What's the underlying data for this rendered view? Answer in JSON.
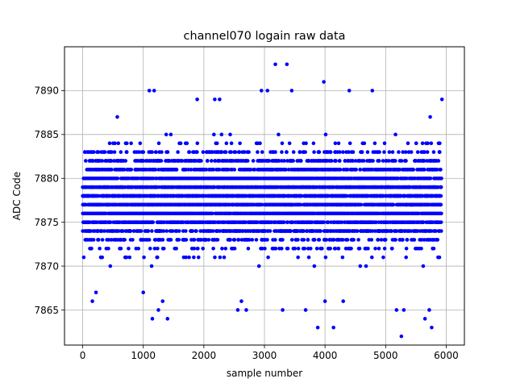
{
  "chart_data": {
    "type": "scatter",
    "title": "channel070 logain raw data",
    "xlabel": "sample number",
    "ylabel": "ADC Code",
    "xlim": [
      -300,
      6300
    ],
    "ylim": [
      7861,
      7895
    ],
    "xticks": [
      0,
      1000,
      2000,
      3000,
      4000,
      5000,
      6000
    ],
    "yticks": [
      7865,
      7870,
      7875,
      7880,
      7885,
      7890
    ],
    "x_tick_labels": [
      "0",
      "1000",
      "2000",
      "3000",
      "4000",
      "5000",
      "6000"
    ],
    "y_tick_labels": [
      "7865",
      "7870",
      "7875",
      "7880",
      "7885",
      "7890"
    ],
    "grid": true,
    "marker_color": "#0000ff",
    "series": [
      {
        "n_samples": 6000,
        "x_range": [
          0,
          5920
        ],
        "dense_band": [
          7868,
          7887
        ],
        "outliers": [
          [
            160,
            7866
          ],
          [
            220,
            7867
          ],
          [
            1000,
            7867
          ],
          [
            1150,
            7864
          ],
          [
            1250,
            7865
          ],
          [
            1320,
            7866
          ],
          [
            1400,
            7864
          ],
          [
            1100,
            7890
          ],
          [
            1180,
            7890
          ],
          [
            1890,
            7889
          ],
          [
            2180,
            7889
          ],
          [
            2260,
            7889
          ],
          [
            2560,
            7865
          ],
          [
            2620,
            7866
          ],
          [
            2700,
            7865
          ],
          [
            2950,
            7890
          ],
          [
            3050,
            7890
          ],
          [
            3180,
            7893
          ],
          [
            3370,
            7893
          ],
          [
            3450,
            7890
          ],
          [
            3300,
            7865
          ],
          [
            3680,
            7865
          ],
          [
            3880,
            7863
          ],
          [
            3980,
            7891
          ],
          [
            4000,
            7866
          ],
          [
            4140,
            7863
          ],
          [
            4300,
            7866
          ],
          [
            4400,
            7890
          ],
          [
            4780,
            7890
          ],
          [
            5180,
            7865
          ],
          [
            5260,
            7862
          ],
          [
            5300,
            7865
          ],
          [
            5650,
            7864
          ],
          [
            5720,
            7865
          ],
          [
            5760,
            7863
          ],
          [
            5930,
            7889
          ]
        ]
      }
    ]
  }
}
